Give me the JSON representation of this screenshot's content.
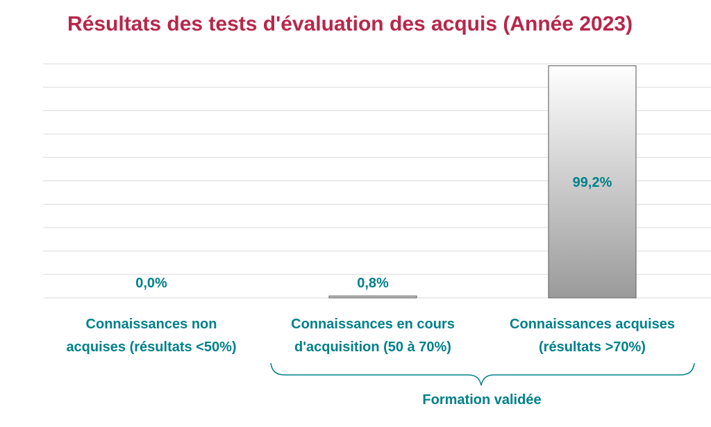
{
  "colors": {
    "title": "#b8264a",
    "label": "#00808a",
    "grid": "#d9d9d9",
    "bar_top": "#ffffff",
    "bar_bottom": "#9a9a9a",
    "bar_stroke": "#6e6e6e",
    "brace": "#00808a"
  },
  "chart_data": {
    "type": "bar",
    "title": "Résultats des tests d'évaluation des acquis (Année 2023)",
    "categories": [
      [
        "Connaissances non",
        "acquises (résultats <50%)"
      ],
      [
        "Connaissances en cours",
        "d'acquisition (50 à 70%)"
      ],
      [
        "Connaissances acquises",
        "(résultats >70%)"
      ]
    ],
    "values": [
      0.0,
      0.8,
      99.2
    ],
    "data_labels": [
      "0,0%",
      "0,8%",
      "99,2%"
    ],
    "ylim": [
      0,
      100
    ],
    "grid": true,
    "bracket_label": "Formation validée"
  }
}
